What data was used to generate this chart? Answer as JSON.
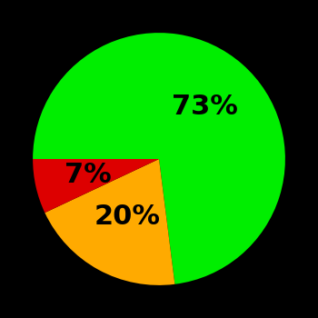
{
  "slices": [
    73,
    20,
    7
  ],
  "labels": [
    "73%",
    "20%",
    "7%"
  ],
  "colors": [
    "#00ee00",
    "#ffaa00",
    "#dd0000"
  ],
  "background_color": "#000000",
  "startangle": 180,
  "figsize": [
    3.5,
    3.5
  ],
  "dpi": 100,
  "font_size": 22,
  "font_weight": "bold",
  "label_radii": [
    0.55,
    0.52,
    0.58
  ]
}
